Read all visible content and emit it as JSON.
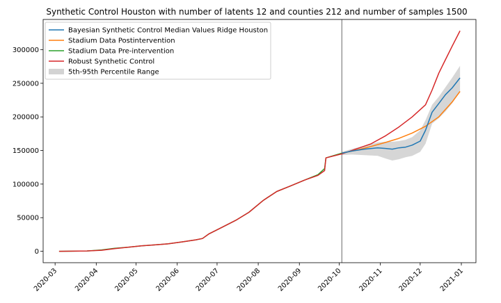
{
  "chart_data": {
    "type": "line",
    "title": "Synthetic Control Houston with number of latents 12 and counties 212 and number of samples 1500",
    "xlabel": "",
    "ylabel": "",
    "x_ticks": [
      "2020-03",
      "2020-04",
      "2020-05",
      "2020-06",
      "2020-07",
      "2020-08",
      "2020-09",
      "2020-10",
      "2020-11",
      "2020-12",
      "2021-01"
    ],
    "y_ticks": [
      "0",
      "50000",
      "100000",
      "150000",
      "200000",
      "250000",
      "300000"
    ],
    "xlim": [
      "2020-02-21",
      "2021-01-12"
    ],
    "ylim": [
      -17000,
      345000
    ],
    "intervention_date": "2020-10-03",
    "grid": false,
    "legend_position": "top-left",
    "colors": {
      "bayesian": "#1f77b4",
      "post": "#ff7f0e",
      "pre": "#2ca02c",
      "robust": "#d62728",
      "band": "#c8c8c8",
      "vline": "#808080"
    },
    "legend": [
      {
        "key": "bayesian",
        "label": "Bayesian Synthetic Control Median Values Ridge Houston",
        "kind": "line"
      },
      {
        "key": "post",
        "label": "Stadium Data Postintervention",
        "kind": "line"
      },
      {
        "key": "pre",
        "label": "Stadium Data Pre-intervention",
        "kind": "line"
      },
      {
        "key": "robust",
        "label": "Robust Synthetic Control",
        "kind": "line"
      },
      {
        "key": "band",
        "label": "5th-95th Percentile Range",
        "kind": "patch"
      }
    ],
    "series": [
      {
        "key": "pre",
        "name": "Stadium Data Pre-intervention",
        "x": [
          "2020-03-04",
          "2020-03-15",
          "2020-03-25",
          "2020-04-05",
          "2020-04-15",
          "2020-04-25",
          "2020-05-05",
          "2020-05-15",
          "2020-05-25",
          "2020-06-05",
          "2020-06-15",
          "2020-06-20",
          "2020-06-25",
          "2020-07-05",
          "2020-07-15",
          "2020-07-25",
          "2020-08-05",
          "2020-08-15",
          "2020-08-25",
          "2020-09-05",
          "2020-09-15",
          "2020-09-20",
          "2020-09-21",
          "2020-10-03"
        ],
        "y": [
          0,
          200,
          500,
          2000,
          4500,
          6000,
          8000,
          9500,
          11000,
          14000,
          17000,
          19000,
          26000,
          36000,
          46000,
          58000,
          76000,
          89000,
          97000,
          106000,
          114000,
          123000,
          139000,
          146000
        ]
      },
      {
        "key": "robust",
        "name": "Robust Synthetic Control",
        "x": [
          "2020-03-04",
          "2020-03-15",
          "2020-03-25",
          "2020-04-05",
          "2020-04-15",
          "2020-04-25",
          "2020-05-05",
          "2020-05-15",
          "2020-05-25",
          "2020-06-05",
          "2020-06-15",
          "2020-06-20",
          "2020-06-25",
          "2020-07-05",
          "2020-07-15",
          "2020-07-25",
          "2020-08-05",
          "2020-08-15",
          "2020-08-25",
          "2020-09-05",
          "2020-09-15",
          "2020-09-20",
          "2020-09-21",
          "2020-10-03",
          "2020-10-15",
          "2020-10-25",
          "2020-11-05",
          "2020-11-15",
          "2020-11-25",
          "2020-12-05",
          "2020-12-10",
          "2020-12-15",
          "2020-12-20",
          "2020-12-25",
          "2020-12-31"
        ],
        "y": [
          0,
          200,
          500,
          1500,
          4000,
          6000,
          8000,
          9500,
          11000,
          14000,
          17000,
          19000,
          26000,
          36000,
          46000,
          58000,
          76000,
          89000,
          97000,
          106000,
          113000,
          120000,
          139000,
          145000,
          153000,
          160000,
          172000,
          185000,
          200000,
          218000,
          240000,
          265000,
          285000,
          305000,
          328000
        ]
      },
      {
        "key": "post",
        "name": "Stadium Data Postintervention",
        "x": [
          "2020-10-03",
          "2020-10-15",
          "2020-10-25",
          "2020-11-05",
          "2020-11-15",
          "2020-11-25",
          "2020-12-05",
          "2020-12-15",
          "2020-12-25",
          "2020-12-31"
        ],
        "y": [
          146000,
          151000,
          156000,
          162000,
          168000,
          176000,
          186000,
          200000,
          222000,
          238000
        ]
      },
      {
        "key": "bayesian",
        "name": "Bayesian Synthetic Control Median Values Ridge Houston",
        "x": [
          "2020-10-03",
          "2020-10-10",
          "2020-10-20",
          "2020-10-30",
          "2020-11-05",
          "2020-11-10",
          "2020-11-15",
          "2020-11-20",
          "2020-11-25",
          "2020-12-01",
          "2020-12-05",
          "2020-12-10",
          "2020-12-15",
          "2020-12-20",
          "2020-12-25",
          "2020-12-31"
        ],
        "y": [
          146000,
          149000,
          152000,
          154000,
          153000,
          152000,
          154000,
          155000,
          158000,
          164000,
          180000,
          207000,
          220000,
          233000,
          243000,
          258000
        ]
      }
    ],
    "band": {
      "key": "band",
      "name": "5th-95th Percentile Range",
      "x": [
        "2020-10-03",
        "2020-10-10",
        "2020-10-20",
        "2020-10-30",
        "2020-11-05",
        "2020-11-10",
        "2020-11-15",
        "2020-11-20",
        "2020-11-25",
        "2020-12-01",
        "2020-12-05",
        "2020-12-10",
        "2020-12-15",
        "2020-12-20",
        "2020-12-25",
        "2020-12-31"
      ],
      "lower": [
        143000,
        144000,
        143000,
        142000,
        138000,
        135000,
        137000,
        140000,
        142000,
        148000,
        160000,
        190000,
        198000,
        208000,
        220000,
        238000
      ],
      "upper": [
        148000,
        152000,
        157000,
        162000,
        163000,
        163000,
        164000,
        166000,
        170000,
        180000,
        195000,
        218000,
        230000,
        244000,
        258000,
        276000
      ]
    }
  }
}
